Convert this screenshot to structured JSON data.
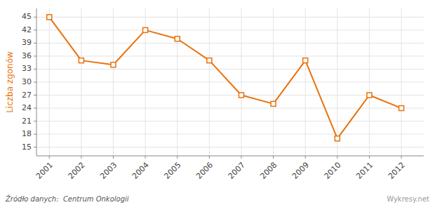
{
  "chart_data": {
    "type": "line",
    "y_label": "Liczba zgonów",
    "x": [
      2001,
      2002,
      2003,
      2004,
      2005,
      2006,
      2007,
      2008,
      2009,
      2010,
      2011,
      2012
    ],
    "values": [
      45,
      35,
      34,
      42,
      40,
      35,
      27,
      25,
      35,
      17,
      27,
      24
    ],
    "color": "#e8720c",
    "marker": "square",
    "line_style": "solid",
    "xlim": [
      2000.6,
      2012.7
    ],
    "xticks": [
      2001,
      2002,
      2003,
      2004,
      2005,
      2006,
      2007,
      2008,
      2009,
      2010,
      2011,
      2012
    ],
    "ylim": [
      13,
      47
    ],
    "yticks": [
      15,
      18,
      21,
      24,
      27,
      30,
      33,
      36,
      39,
      42,
      45
    ],
    "grid": true,
    "annotations": [
      "Źródło danych:  Centrum Onkologii",
      "Wykresy.net"
    ]
  }
}
